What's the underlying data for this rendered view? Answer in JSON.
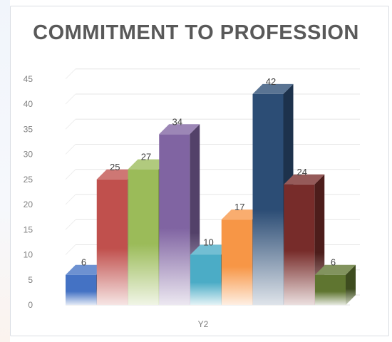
{
  "chart_data": {
    "type": "bar",
    "style": "3d-column",
    "title": "COMMITMENT TO PROFESSION",
    "xlabel": "Y2",
    "ylabel": "",
    "ylim": [
      0,
      45
    ],
    "yticks": [
      0,
      5,
      10,
      15,
      20,
      25,
      30,
      35,
      40,
      45
    ],
    "grid": true,
    "legend": "none",
    "series": [
      {
        "value": 6,
        "color": "#4472c4"
      },
      {
        "value": 25,
        "color": "#c0504d"
      },
      {
        "value": 27,
        "color": "#9bbb59"
      },
      {
        "value": 34,
        "color": "#8064a2"
      },
      {
        "value": 10,
        "color": "#4bacc6"
      },
      {
        "value": 17,
        "color": "#f79646"
      },
      {
        "value": 42,
        "color": "#2c4d75"
      },
      {
        "value": 24,
        "color": "#772c2a"
      },
      {
        "value": 6,
        "color": "#5f7530"
      }
    ]
  }
}
